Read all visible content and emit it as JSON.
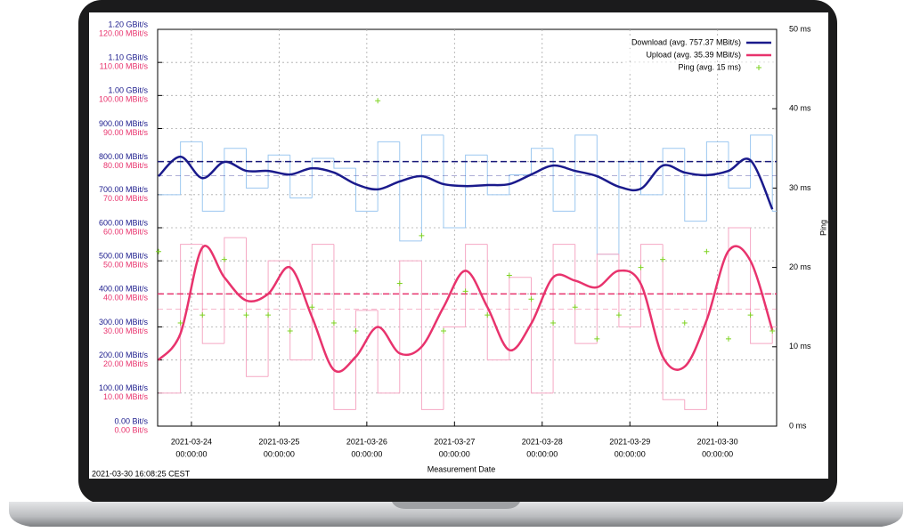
{
  "chart_data": {
    "type": "line",
    "x_label": "Measurement Date",
    "y2_label": "Ping",
    "footer": "2021-03-30 16:08:25 CEST",
    "xlim": [
      "2021-03-23T14:45",
      "2021-03-30T16:10"
    ],
    "xticks": [
      {
        "value": "2021-03-24T00:00",
        "label": [
          "2021-03-24",
          "00:00:00"
        ]
      },
      {
        "value": "2021-03-25T00:00",
        "label": [
          "2021-03-25",
          "00:00:00"
        ]
      },
      {
        "value": "2021-03-26T00:00",
        "label": [
          "2021-03-26",
          "00:00:00"
        ]
      },
      {
        "value": "2021-03-27T00:00",
        "label": [
          "2021-03-27",
          "00:00:00"
        ]
      },
      {
        "value": "2021-03-28T00:00",
        "label": [
          "2021-03-28",
          "00:00:00"
        ]
      },
      {
        "value": "2021-03-29T00:00",
        "label": [
          "2021-03-29",
          "00:00:00"
        ]
      },
      {
        "value": "2021-03-30T00:00",
        "label": [
          "2021-03-30",
          "00:00:00"
        ]
      }
    ],
    "ylim": [
      0,
      1200
    ],
    "yticks": [
      {
        "value": 0,
        "label": "0.00  Bit/s"
      },
      {
        "value": 100,
        "label": "100.00 MBit/s"
      },
      {
        "value": 200,
        "label": "200.00 MBit/s"
      },
      {
        "value": 300,
        "label": "300.00 MBit/s"
      },
      {
        "value": 400,
        "label": "400.00 MBit/s"
      },
      {
        "value": 500,
        "label": "500.00 MBit/s"
      },
      {
        "value": 600,
        "label": "600.00 MBit/s"
      },
      {
        "value": 700,
        "label": "700.00 MBit/s"
      },
      {
        "value": 800,
        "label": "800.00 MBit/s"
      },
      {
        "value": 900,
        "label": "900.00 MBit/s"
      },
      {
        "value": 1000,
        "label": "1.00 GBit/s"
      },
      {
        "value": 1100,
        "label": "1.10 GBit/s"
      },
      {
        "value": 1200,
        "label": "1.20 GBit/s"
      }
    ],
    "y3lim": [
      0,
      120
    ],
    "y3ticks": [
      {
        "value": 0,
        "label": "0.00  Bit/s"
      },
      {
        "value": 10,
        "label": "10.00 MBit/s"
      },
      {
        "value": 20,
        "label": "20.00 MBit/s"
      },
      {
        "value": 30,
        "label": "30.00 MBit/s"
      },
      {
        "value": 40,
        "label": "40.00 MBit/s"
      },
      {
        "value": 50,
        "label": "50.00 MBit/s"
      },
      {
        "value": 60,
        "label": "60.00 MBit/s"
      },
      {
        "value": 70,
        "label": "70.00 MBit/s"
      },
      {
        "value": 80,
        "label": "80.00 MBit/s"
      },
      {
        "value": 90,
        "label": "90.00 MBit/s"
      },
      {
        "value": 100,
        "label": "100.00 MBit/s"
      },
      {
        "value": 110,
        "label": "110.00 MBit/s"
      },
      {
        "value": 120,
        "label": "120.00 MBit/s"
      }
    ],
    "y2lim": [
      0,
      50
    ],
    "y2ticks": [
      {
        "value": 0,
        "label": "0 ms"
      },
      {
        "value": 10,
        "label": "10 ms"
      },
      {
        "value": 20,
        "label": "20 ms"
      },
      {
        "value": 30,
        "label": "30 ms"
      },
      {
        "value": 40,
        "label": "40 ms"
      },
      {
        "value": 50,
        "label": "50 ms"
      }
    ],
    "y_color": "#1a1a8c",
    "y3_color": "#e8336d",
    "grid": true,
    "legend": "upper-right",
    "x": [
      "2021-03-23T15:00",
      "2021-03-23T21:00",
      "2021-03-24T03:00",
      "2021-03-24T09:00",
      "2021-03-24T15:00",
      "2021-03-24T21:00",
      "2021-03-25T03:00",
      "2021-03-25T09:00",
      "2021-03-25T15:00",
      "2021-03-25T21:00",
      "2021-03-26T03:00",
      "2021-03-26T09:00",
      "2021-03-26T15:00",
      "2021-03-26T21:00",
      "2021-03-27T03:00",
      "2021-03-27T09:00",
      "2021-03-27T15:00",
      "2021-03-27T21:00",
      "2021-03-28T03:00",
      "2021-03-28T09:00",
      "2021-03-28T15:00",
      "2021-03-28T21:00",
      "2021-03-29T03:00",
      "2021-03-29T09:00",
      "2021-03-29T15:00",
      "2021-03-29T21:00",
      "2021-03-30T03:00",
      "2021-03-30T09:00",
      "2021-03-30T15:00"
    ],
    "reference_lines": [
      {
        "value": 800,
        "axis": "y",
        "color": "#1a1a7a"
      },
      {
        "value": 40,
        "axis": "y3",
        "color": "#e8336d"
      }
    ],
    "series": [
      {
        "color": "#9cc8f0",
        "style": "step",
        "axis": "y",
        "values": [
          700,
          860,
          650,
          840,
          720,
          820,
          690,
          810,
          780,
          650,
          860,
          560,
          880,
          600,
          820,
          700,
          760,
          840,
          650,
          880,
          520,
          800,
          700,
          840,
          620,
          860,
          720,
          880,
          650
        ]
      },
      {
        "color": "#f5a8c4",
        "style": "step",
        "axis": "y3",
        "values": [
          10,
          55,
          25,
          57,
          15,
          50,
          20,
          55,
          5,
          35,
          10,
          50,
          5,
          30,
          55,
          20,
          45,
          10,
          55,
          25,
          52,
          30,
          55,
          8,
          5,
          40,
          60,
          25,
          30
        ]
      },
      {
        "name": "Download (avg. 757.37 MBit/s)",
        "avg": 757.37,
        "color": "#1a1a8c",
        "style": "line",
        "axis": "y",
        "values": [
          756,
          815,
          750,
          799,
          772,
          772,
          761,
          780,
          767,
          732,
          716,
          740,
          756,
          732,
          726,
          729,
          732,
          761,
          788,
          772,
          756,
          724,
          718,
          788,
          767,
          759,
          772,
          804,
          656
        ]
      },
      {
        "name": "Upload (avg. 35.39 MBit/s)",
        "avg": 35.39,
        "color": "#e8336d",
        "style": "line",
        "axis": "y3",
        "values": [
          20,
          28,
          54,
          45,
          38,
          40,
          48,
          33,
          17,
          21,
          30,
          22,
          24,
          36,
          47,
          36,
          23,
          31,
          45,
          44,
          42,
          47,
          43,
          21,
          18,
          32,
          53,
          50,
          29
        ]
      },
      {
        "name": "Ping (avg. 15 ms)",
        "color": "#7ed321",
        "style": "points",
        "axis": "y2",
        "values": [
          22,
          13,
          14,
          21,
          14,
          14,
          12,
          15,
          13,
          12,
          41,
          18,
          24,
          12,
          17,
          14,
          19,
          16,
          13,
          15,
          11,
          14,
          20,
          21,
          13,
          22,
          11,
          14,
          12
        ]
      }
    ]
  }
}
